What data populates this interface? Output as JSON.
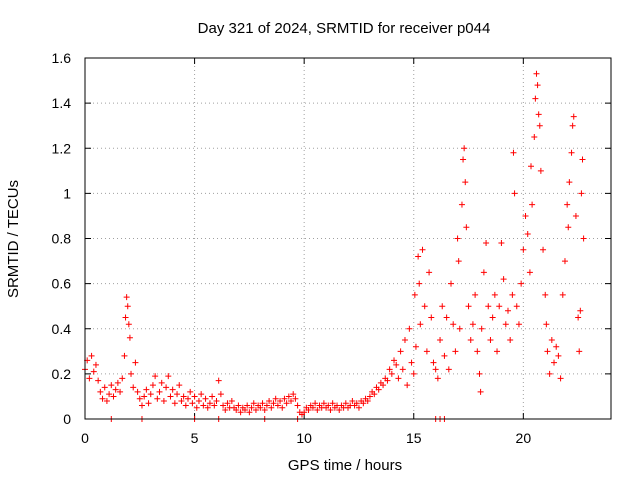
{
  "chart_data": {
    "type": "scatter",
    "title": "Day 321 of 2024, SRMTID for receiver p044",
    "xlabel": "GPS time / hours",
    "ylabel": "SRMTID / TECUs",
    "xlim": [
      0,
      24
    ],
    "ylim": [
      0,
      1.6
    ],
    "xticks": [
      0,
      5,
      10,
      15,
      20
    ],
    "xtick_labels": [
      "0",
      "5",
      "10",
      "15",
      "20"
    ],
    "yticks": [
      0,
      0.2,
      0.4,
      0.6,
      0.8,
      1.0,
      1.2,
      1.4,
      1.6
    ],
    "ytick_labels": [
      "0",
      "0.2",
      "0.4",
      "0.6",
      "0.8",
      "1",
      "1.2",
      "1.4",
      "1.6"
    ],
    "grid": true,
    "marker": "+",
    "color": "#ff0000",
    "series": [
      {
        "name": "SRMTID",
        "points": [
          [
            0.0,
            0.22
          ],
          [
            0.1,
            0.26
          ],
          [
            0.2,
            0.18
          ],
          [
            0.3,
            0.28
          ],
          [
            0.4,
            0.21
          ],
          [
            0.5,
            0.24
          ],
          [
            0.6,
            0.17
          ],
          [
            0.7,
            0.12
          ],
          [
            0.8,
            0.09
          ],
          [
            0.9,
            0.14
          ],
          [
            1.0,
            0.08
          ],
          [
            1.1,
            0.11
          ],
          [
            1.2,
            0.15
          ],
          [
            1.3,
            0.1
          ],
          [
            1.4,
            0.13
          ],
          [
            1.5,
            0.16
          ],
          [
            1.6,
            0.12
          ],
          [
            1.7,
            0.18
          ],
          [
            1.8,
            0.28
          ],
          [
            1.85,
            0.45
          ],
          [
            1.9,
            0.54
          ],
          [
            1.95,
            0.5
          ],
          [
            2.0,
            0.42
          ],
          [
            2.05,
            0.36
          ],
          [
            2.1,
            0.2
          ],
          [
            2.2,
            0.14
          ],
          [
            2.3,
            0.25
          ],
          [
            2.4,
            0.12
          ],
          [
            2.5,
            0.09
          ],
          [
            2.6,
            0.06
          ],
          [
            2.7,
            0.1
          ],
          [
            2.8,
            0.13
          ],
          [
            2.9,
            0.07
          ],
          [
            3.0,
            0.11
          ],
          [
            3.1,
            0.15
          ],
          [
            3.2,
            0.19
          ],
          [
            3.3,
            0.09
          ],
          [
            3.4,
            0.12
          ],
          [
            3.5,
            0.16
          ],
          [
            3.6,
            0.08
          ],
          [
            3.7,
            0.14
          ],
          [
            3.8,
            0.19
          ],
          [
            3.9,
            0.1
          ],
          [
            4.0,
            0.13
          ],
          [
            4.1,
            0.07
          ],
          [
            4.2,
            0.11
          ],
          [
            4.3,
            0.15
          ],
          [
            4.4,
            0.08
          ],
          [
            4.5,
            0.1
          ],
          [
            4.6,
            0.06
          ],
          [
            4.7,
            0.09
          ],
          [
            4.8,
            0.12
          ],
          [
            4.9,
            0.07
          ],
          [
            5.0,
            0.1
          ],
          [
            5.1,
            0.05
          ],
          [
            5.2,
            0.08
          ],
          [
            5.3,
            0.11
          ],
          [
            5.4,
            0.06
          ],
          [
            5.5,
            0.09
          ],
          [
            5.6,
            0.05
          ],
          [
            5.7,
            0.07
          ],
          [
            5.8,
            0.1
          ],
          [
            5.9,
            0.06
          ],
          [
            6.0,
            0.08
          ],
          [
            6.1,
            0.17
          ],
          [
            6.2,
            0.11
          ],
          [
            6.3,
            0.06
          ],
          [
            6.4,
            0.04
          ],
          [
            6.5,
            0.07
          ],
          [
            6.6,
            0.05
          ],
          [
            6.7,
            0.08
          ],
          [
            6.8,
            0.05
          ],
          [
            6.9,
            0.04
          ],
          [
            7.0,
            0.06
          ],
          [
            7.1,
            0.03
          ],
          [
            7.2,
            0.05
          ],
          [
            7.3,
            0.04
          ],
          [
            7.4,
            0.06
          ],
          [
            7.5,
            0.03
          ],
          [
            7.6,
            0.05
          ],
          [
            7.7,
            0.07
          ],
          [
            7.8,
            0.04
          ],
          [
            7.9,
            0.06
          ],
          [
            8.0,
            0.05
          ],
          [
            8.1,
            0.07
          ],
          [
            8.2,
            0.04
          ],
          [
            8.3,
            0.06
          ],
          [
            8.4,
            0.08
          ],
          [
            8.5,
            0.05
          ],
          [
            8.6,
            0.07
          ],
          [
            8.7,
            0.09
          ],
          [
            8.8,
            0.06
          ],
          [
            8.9,
            0.08
          ],
          [
            9.0,
            0.05
          ],
          [
            9.1,
            0.09
          ],
          [
            9.2,
            0.07
          ],
          [
            9.3,
            0.1
          ],
          [
            9.4,
            0.08
          ],
          [
            9.5,
            0.11
          ],
          [
            9.6,
            0.09
          ],
          [
            9.7,
            0.06
          ],
          [
            9.8,
            0.03
          ],
          [
            9.9,
            0.02
          ],
          [
            10.0,
            0.03
          ],
          [
            10.1,
            0.05
          ],
          [
            10.2,
            0.04
          ],
          [
            10.3,
            0.06
          ],
          [
            10.4,
            0.05
          ],
          [
            10.5,
            0.07
          ],
          [
            10.6,
            0.04
          ],
          [
            10.7,
            0.06
          ],
          [
            10.8,
            0.05
          ],
          [
            10.9,
            0.07
          ],
          [
            11.0,
            0.05
          ],
          [
            11.1,
            0.06
          ],
          [
            11.2,
            0.04
          ],
          [
            11.3,
            0.07
          ],
          [
            11.4,
            0.05
          ],
          [
            11.5,
            0.06
          ],
          [
            11.6,
            0.04
          ],
          [
            11.7,
            0.06
          ],
          [
            11.8,
            0.05
          ],
          [
            11.9,
            0.07
          ],
          [
            12.0,
            0.05
          ],
          [
            12.1,
            0.06
          ],
          [
            12.2,
            0.08
          ],
          [
            12.3,
            0.06
          ],
          [
            12.4,
            0.07
          ],
          [
            12.5,
            0.05
          ],
          [
            12.6,
            0.08
          ],
          [
            12.7,
            0.07
          ],
          [
            12.8,
            0.09
          ],
          [
            12.9,
            0.08
          ],
          [
            13.0,
            0.1
          ],
          [
            13.1,
            0.12
          ],
          [
            13.2,
            0.11
          ],
          [
            13.3,
            0.14
          ],
          [
            13.4,
            0.13
          ],
          [
            13.5,
            0.16
          ],
          [
            13.6,
            0.15
          ],
          [
            13.7,
            0.18
          ],
          [
            13.8,
            0.17
          ],
          [
            13.9,
            0.22
          ],
          [
            14.0,
            0.2
          ],
          [
            14.1,
            0.26
          ],
          [
            14.2,
            0.24
          ],
          [
            14.3,
            0.18
          ],
          [
            14.4,
            0.3
          ],
          [
            14.5,
            0.22
          ],
          [
            14.6,
            0.35
          ],
          [
            14.7,
            0.15
          ],
          [
            14.8,
            0.4
          ],
          [
            14.9,
            0.25
          ],
          [
            15.0,
            0.2
          ],
          [
            15.05,
            0.55
          ],
          [
            15.1,
            0.32
          ],
          [
            15.2,
            0.72
          ],
          [
            15.25,
            0.6
          ],
          [
            15.3,
            0.42
          ],
          [
            15.4,
            0.75
          ],
          [
            15.5,
            0.5
          ],
          [
            15.6,
            0.3
          ],
          [
            15.7,
            0.65
          ],
          [
            15.8,
            0.45
          ],
          [
            15.9,
            0.25
          ],
          [
            16.0,
            0.22
          ],
          [
            16.1,
            0.18
          ],
          [
            16.2,
            0.35
          ],
          [
            16.3,
            0.5
          ],
          [
            16.4,
            0.28
          ],
          [
            16.5,
            0.45
          ],
          [
            16.6,
            0.22
          ],
          [
            16.7,
            0.6
          ],
          [
            16.8,
            0.42
          ],
          [
            16.9,
            0.3
          ],
          [
            17.0,
            0.8
          ],
          [
            17.05,
            0.7
          ],
          [
            17.1,
            0.4
          ],
          [
            17.2,
            0.95
          ],
          [
            17.25,
            1.15
          ],
          [
            17.3,
            1.2
          ],
          [
            17.35,
            1.05
          ],
          [
            17.4,
            0.85
          ],
          [
            17.5,
            0.5
          ],
          [
            17.6,
            0.35
          ],
          [
            17.7,
            0.42
          ],
          [
            17.8,
            0.55
          ],
          [
            17.9,
            0.3
          ],
          [
            18.0,
            0.2
          ],
          [
            18.05,
            0.12
          ],
          [
            18.1,
            0.4
          ],
          [
            18.2,
            0.65
          ],
          [
            18.3,
            0.78
          ],
          [
            18.4,
            0.5
          ],
          [
            18.5,
            0.35
          ],
          [
            18.6,
            0.45
          ],
          [
            18.7,
            0.55
          ],
          [
            18.8,
            0.3
          ],
          [
            18.9,
            0.5
          ],
          [
            19.0,
            0.78
          ],
          [
            19.1,
            0.62
          ],
          [
            19.2,
            0.42
          ],
          [
            19.3,
            0.48
          ],
          [
            19.4,
            0.35
          ],
          [
            19.5,
            0.55
          ],
          [
            19.55,
            1.18
          ],
          [
            19.6,
            1.0
          ],
          [
            19.7,
            0.5
          ],
          [
            19.8,
            0.42
          ],
          [
            19.9,
            0.6
          ],
          [
            20.0,
            0.75
          ],
          [
            20.1,
            0.9
          ],
          [
            20.2,
            0.82
          ],
          [
            20.3,
            0.65
          ],
          [
            20.35,
            1.12
          ],
          [
            20.4,
            0.95
          ],
          [
            20.5,
            1.25
          ],
          [
            20.55,
            1.42
          ],
          [
            20.6,
            1.53
          ],
          [
            20.65,
            1.48
          ],
          [
            20.7,
            1.35
          ],
          [
            20.75,
            1.3
          ],
          [
            20.8,
            1.1
          ],
          [
            20.9,
            0.75
          ],
          [
            21.0,
            0.55
          ],
          [
            21.05,
            0.42
          ],
          [
            21.1,
            0.3
          ],
          [
            21.2,
            0.2
          ],
          [
            21.3,
            0.35
          ],
          [
            21.4,
            0.25
          ],
          [
            21.5,
            0.32
          ],
          [
            21.6,
            0.28
          ],
          [
            21.7,
            0.18
          ],
          [
            21.8,
            0.55
          ],
          [
            21.9,
            0.7
          ],
          [
            22.0,
            0.95
          ],
          [
            22.05,
            0.85
          ],
          [
            22.1,
            1.05
          ],
          [
            22.2,
            1.18
          ],
          [
            22.25,
            1.3
          ],
          [
            22.3,
            1.34
          ],
          [
            22.4,
            0.9
          ],
          [
            22.5,
            0.45
          ],
          [
            22.55,
            0.3
          ],
          [
            22.6,
            0.48
          ],
          [
            22.65,
            1.0
          ],
          [
            22.7,
            1.15
          ],
          [
            22.75,
            0.8
          ]
        ]
      }
    ],
    "zero_outliers_x": [
      1.2,
      2.6,
      5.0,
      6.1,
      8.2,
      9.7,
      16.0,
      16.2,
      16.4
    ]
  }
}
